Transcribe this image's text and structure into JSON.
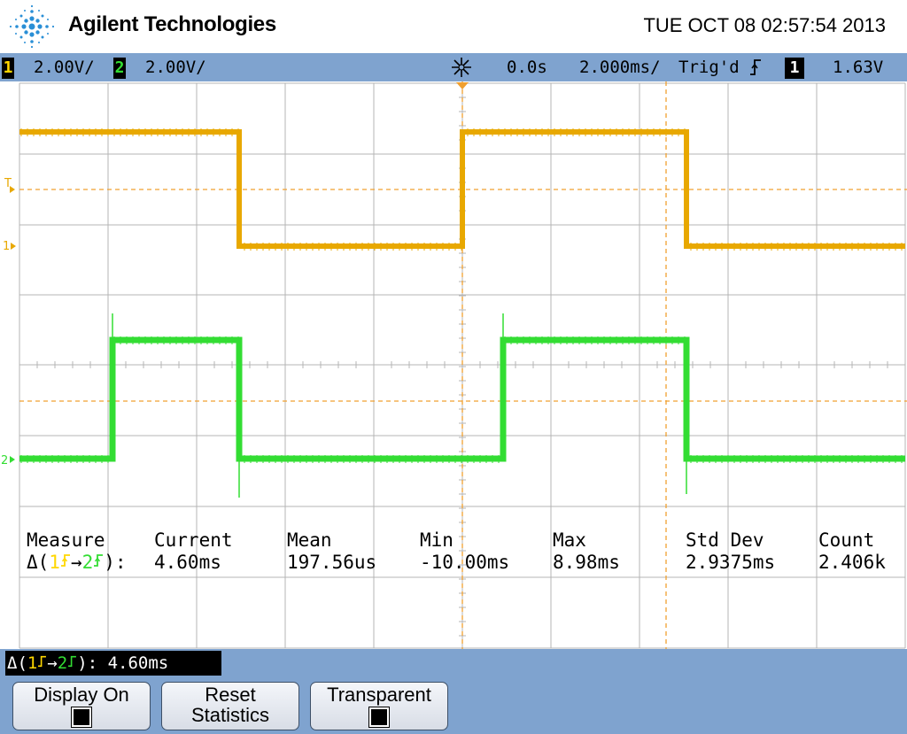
{
  "header": {
    "brand": "Agilent Technologies",
    "datetime": "TUE OCT 08 02:57:54 2013"
  },
  "status": {
    "ch1_badge": "1",
    "ch1_scale": "2.00V/",
    "ch2_badge": "2",
    "ch2_scale": "2.00V/",
    "delay": "0.0s",
    "timebase": "2.000ms/",
    "trigger_state": "Trig'd",
    "trigger_edge": "rising",
    "trigger_source": "1",
    "trigger_level": "1.63V"
  },
  "markers": {
    "trigger_level_mark": "T",
    "ch1_ground": "1",
    "ch2_ground": "2"
  },
  "measurements": {
    "headers": [
      "Measure",
      "Current",
      "Mean",
      "Min",
      "Max",
      "Std Dev",
      "Count"
    ],
    "row_label": "Δ(1→2):",
    "row_values": [
      "4.60ms",
      "197.56us",
      "-10.00ms",
      "8.98ms",
      "2.9375ms",
      "2.406k"
    ]
  },
  "bottom": {
    "delta_readout_label": "Δ(1→2):",
    "delta_readout_value": "4.60ms",
    "softkeys": [
      {
        "line1": "Display On",
        "line2": "",
        "checked": true
      },
      {
        "line1": "Reset",
        "line2": "Statistics",
        "checked": false
      },
      {
        "line1": "Transparent",
        "line2": "",
        "checked": true
      }
    ]
  },
  "colors": {
    "ch1": "#e8a800",
    "ch2": "#33dd33",
    "statusbar": "#7fa3cf",
    "cursor": "#f0a030",
    "grid": "#b4b4b4"
  }
}
